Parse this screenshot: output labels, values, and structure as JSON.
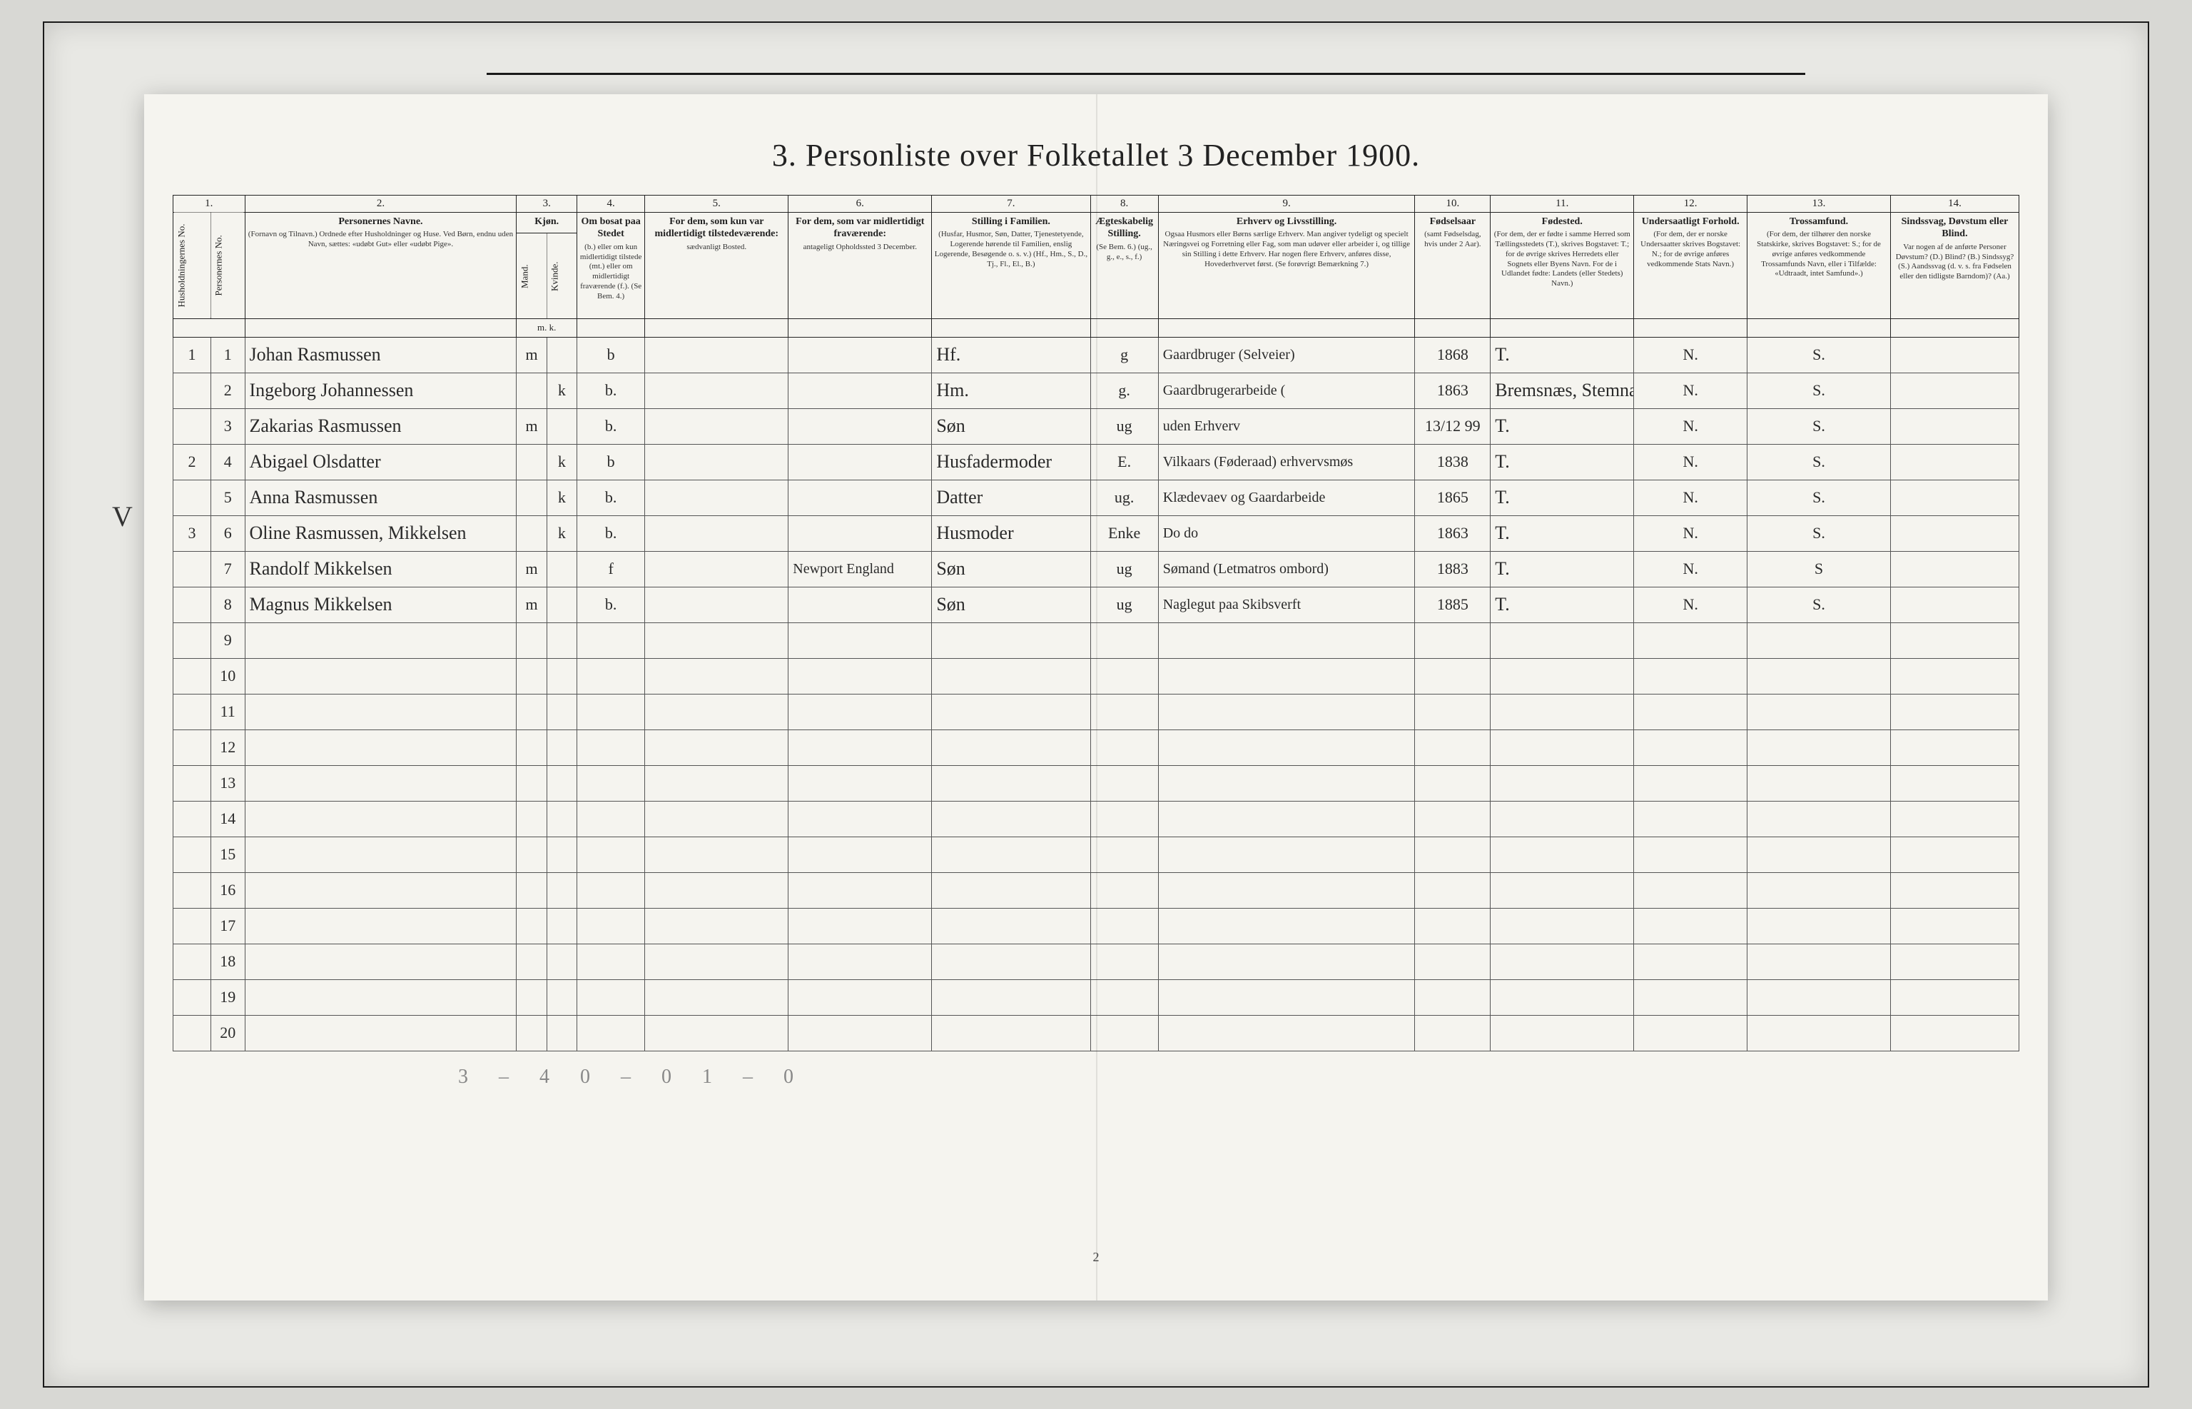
{
  "title": "3. Personliste over Folketallet 3 December 1900.",
  "page_number": "2",
  "footer_annotation": "3 – 4   0 – 0   1 – 0",
  "margin_mark": "V",
  "column_numbers": [
    "1.",
    "2.",
    "3.",
    "4.",
    "5.",
    "6.",
    "7.",
    "8.",
    "9.",
    "10.",
    "11.",
    "12.",
    "13.",
    "14."
  ],
  "headers": {
    "husholdning": "Husholdningernes No.",
    "person_no": "Personernes No.",
    "col2_title": "Personernes Navne.",
    "col2_sub": "(Fornavn og Tilnavn.) Ordnede efter Husholdninger og Huse. Ved Børn, endnu uden Navn, sættes: «udøbt Gut» eller «udøbt Pige».",
    "col3_title": "Kjøn.",
    "col3_m": "Mand.",
    "col3_k": "Kvinde.",
    "col3_mk": "m.  k.",
    "col4_title": "Om bosat paa Stedet",
    "col4_sub": "(b.) eller om kun midlertidigt tilstede (mt.) eller om midlertidigt fraværende (f.). (Se Bem. 4.)",
    "col5_title": "For dem, som kun var midlertidigt tilstedeværende:",
    "col5_sub": "sædvanligt Bosted.",
    "col6_title": "For dem, som var midlertidigt fraværende:",
    "col6_sub": "antageligt Opholdssted 3 December.",
    "col7_title": "Stilling i Familien.",
    "col7_sub": "(Husfar, Husmor, Søn, Datter, Tjenestetyende, Logerende hørende til Familien, enslig Logerende, Besøgende o. s. v.) (Hf., Hm., S., D., Tj., Fl., El., B.)",
    "col8_title": "Ægteskabelig Stilling.",
    "col8_sub": "(Se Bem. 6.) (ug., g., e., s., f.)",
    "col9_title": "Erhverv og Livsstilling.",
    "col9_sub": "Ogsaa Husmors eller Børns særlige Erhverv. Man angiver tydeligt og specielt Næringsvei og Forretning eller Fag, som man udøver eller arbeider i, og tillige sin Stilling i dette Erhverv. Har nogen flere Erhverv, anføres disse, Hovederhvervet først. (Se forøvrigt Bemærkning 7.)",
    "col10_title": "Fødselsaar",
    "col10_sub": "(samt Fødselsdag, hvis under 2 Aar).",
    "col11_title": "Fødested.",
    "col11_sub": "(For dem, der er fødte i samme Herred som Tællingsstedets (T.), skrives Bogstavet: T.; for de øvrige skrives Herredets eller Sognets eller Byens Navn. For de i Udlandet fødte: Landets (eller Stedets) Navn.)",
    "col12_title": "Undersaatligt Forhold.",
    "col12_sub": "(For dem, der er norske Undersaatter skrives Bogstavet: N.; for de øvrige anføres vedkommende Stats Navn.)",
    "col13_title": "Trossamfund.",
    "col13_sub": "(For dem, der tilhører den norske Statskirke, skrives Bogstavet: S.; for de øvrige anføres vedkommende Trossamfunds Navn, eller i Tilfælde: «Udtraadt, intet Samfund».)",
    "col14_title": "Sindssvag, Døvstum eller Blind.",
    "col14_sub": "Var nogen af de anførte Personer Døvstum? (D.) Blind? (B.) Sindssyg? (S.) Aandssvag (d. v. s. fra Fødselen eller den tidligste Barndom)? (Aa.)"
  },
  "rows": [
    {
      "hh": "1",
      "pn": "1",
      "name": "Johan Rasmussen",
      "m": "m",
      "k": "",
      "stat": "b",
      "c5": "",
      "c6": "",
      "fam": "Hf.",
      "aeg": "g",
      "erhv": "Gaardbruger (Selveier)",
      "year": "1868",
      "birthplace": "T.",
      "nat": "N.",
      "rel": "S.",
      "c14": ""
    },
    {
      "hh": "",
      "pn": "2",
      "name": "Ingeborg Johannessen",
      "m": "",
      "k": "k",
      "stat": "b.",
      "c5": "",
      "c6": "",
      "fam": "Hm.",
      "aeg": "g.",
      "erhv": "Gaardbrugerarbeide (",
      "year": "1863",
      "birthplace": "Bremsnæs, Stemna",
      "nat": "N.",
      "rel": "S.",
      "c14": ""
    },
    {
      "hh": "",
      "pn": "3",
      "name": "Zakarias Rasmussen",
      "m": "m",
      "k": "",
      "stat": "b.",
      "c5": "",
      "c6": "",
      "fam": "Søn",
      "aeg": "ug",
      "erhv": "uden Erhverv",
      "year": "13/12 99",
      "birthplace": "T.",
      "nat": "N.",
      "rel": "S.",
      "c14": ""
    },
    {
      "hh": "2",
      "pn": "4",
      "name": "Abigael Olsdatter",
      "m": "",
      "k": "k",
      "stat": "b",
      "c5": "",
      "c6": "",
      "fam": "Husfadermoder",
      "aeg": "E.",
      "erhv": "Vilkaars (Føderaad) erhvervsmøs",
      "year": "1838",
      "birthplace": "T.",
      "nat": "N.",
      "rel": "S.",
      "c14": ""
    },
    {
      "hh": "",
      "pn": "5",
      "name": "Anna Rasmussen",
      "m": "",
      "k": "k",
      "stat": "b.",
      "c5": "",
      "c6": "",
      "fam": "Datter",
      "aeg": "ug.",
      "erhv": "Klædevaev og Gaardarbeide",
      "year": "1865",
      "birthplace": "T.",
      "nat": "N.",
      "rel": "S.",
      "c14": ""
    },
    {
      "hh": "3",
      "pn": "6",
      "name": "Oline Rasmussen, Mikkelsen",
      "m": "",
      "k": "k",
      "stat": "b.",
      "c5": "",
      "c6": "",
      "fam": "Husmoder",
      "aeg": "Enke",
      "erhv": "Do      do",
      "year": "1863",
      "birthplace": "T.",
      "nat": "N.",
      "rel": "S.",
      "c14": ""
    },
    {
      "hh": "",
      "pn": "7",
      "name": "Randolf Mikkelsen",
      "m": "m",
      "k": "",
      "stat": "f",
      "c5": "",
      "c6": "Newport England",
      "fam": "Søn",
      "aeg": "ug",
      "erhv": "Sømand (Letmatros ombord)",
      "year": "1883",
      "birthplace": "T.",
      "nat": "N.",
      "rel": "S",
      "c14": ""
    },
    {
      "hh": "",
      "pn": "8",
      "name": "Magnus Mikkelsen",
      "m": "m",
      "k": "",
      "stat": "b.",
      "c5": "",
      "c6": "",
      "fam": "Søn",
      "aeg": "ug",
      "erhv": "Naglegut paa Skibsverft",
      "year": "1885",
      "birthplace": "T.",
      "nat": "N.",
      "rel": "S.",
      "c14": ""
    },
    {
      "hh": "",
      "pn": "9",
      "name": "",
      "m": "",
      "k": "",
      "stat": "",
      "c5": "",
      "c6": "",
      "fam": "",
      "aeg": "",
      "erhv": "",
      "year": "",
      "birthplace": "",
      "nat": "",
      "rel": "",
      "c14": ""
    },
    {
      "hh": "",
      "pn": "10",
      "name": "",
      "m": "",
      "k": "",
      "stat": "",
      "c5": "",
      "c6": "",
      "fam": "",
      "aeg": "",
      "erhv": "",
      "year": "",
      "birthplace": "",
      "nat": "",
      "rel": "",
      "c14": ""
    },
    {
      "hh": "",
      "pn": "11",
      "name": "",
      "m": "",
      "k": "",
      "stat": "",
      "c5": "",
      "c6": "",
      "fam": "",
      "aeg": "",
      "erhv": "",
      "year": "",
      "birthplace": "",
      "nat": "",
      "rel": "",
      "c14": ""
    },
    {
      "hh": "",
      "pn": "12",
      "name": "",
      "m": "",
      "k": "",
      "stat": "",
      "c5": "",
      "c6": "",
      "fam": "",
      "aeg": "",
      "erhv": "",
      "year": "",
      "birthplace": "",
      "nat": "",
      "rel": "",
      "c14": ""
    },
    {
      "hh": "",
      "pn": "13",
      "name": "",
      "m": "",
      "k": "",
      "stat": "",
      "c5": "",
      "c6": "",
      "fam": "",
      "aeg": "",
      "erhv": "",
      "year": "",
      "birthplace": "",
      "nat": "",
      "rel": "",
      "c14": ""
    },
    {
      "hh": "",
      "pn": "14",
      "name": "",
      "m": "",
      "k": "",
      "stat": "",
      "c5": "",
      "c6": "",
      "fam": "",
      "aeg": "",
      "erhv": "",
      "year": "",
      "birthplace": "",
      "nat": "",
      "rel": "",
      "c14": ""
    },
    {
      "hh": "",
      "pn": "15",
      "name": "",
      "m": "",
      "k": "",
      "stat": "",
      "c5": "",
      "c6": "",
      "fam": "",
      "aeg": "",
      "erhv": "",
      "year": "",
      "birthplace": "",
      "nat": "",
      "rel": "",
      "c14": ""
    },
    {
      "hh": "",
      "pn": "16",
      "name": "",
      "m": "",
      "k": "",
      "stat": "",
      "c5": "",
      "c6": "",
      "fam": "",
      "aeg": "",
      "erhv": "",
      "year": "",
      "birthplace": "",
      "nat": "",
      "rel": "",
      "c14": ""
    },
    {
      "hh": "",
      "pn": "17",
      "name": "",
      "m": "",
      "k": "",
      "stat": "",
      "c5": "",
      "c6": "",
      "fam": "",
      "aeg": "",
      "erhv": "",
      "year": "",
      "birthplace": "",
      "nat": "",
      "rel": "",
      "c14": ""
    },
    {
      "hh": "",
      "pn": "18",
      "name": "",
      "m": "",
      "k": "",
      "stat": "",
      "c5": "",
      "c6": "",
      "fam": "",
      "aeg": "",
      "erhv": "",
      "year": "",
      "birthplace": "",
      "nat": "",
      "rel": "",
      "c14": ""
    },
    {
      "hh": "",
      "pn": "19",
      "name": "",
      "m": "",
      "k": "",
      "stat": "",
      "c5": "",
      "c6": "",
      "fam": "",
      "aeg": "",
      "erhv": "",
      "year": "",
      "birthplace": "",
      "nat": "",
      "rel": "",
      "c14": ""
    },
    {
      "hh": "",
      "pn": "20",
      "name": "",
      "m": "",
      "k": "",
      "stat": "",
      "c5": "",
      "c6": "",
      "fam": "",
      "aeg": "",
      "erhv": "",
      "year": "",
      "birthplace": "",
      "nat": "",
      "rel": "",
      "c14": ""
    }
  ],
  "colors": {
    "page_bg": "#f5f4ef",
    "outer_bg": "#d8d8d4",
    "border": "#222222",
    "handwriting": "#2a2a2a",
    "faint": "#888888"
  }
}
